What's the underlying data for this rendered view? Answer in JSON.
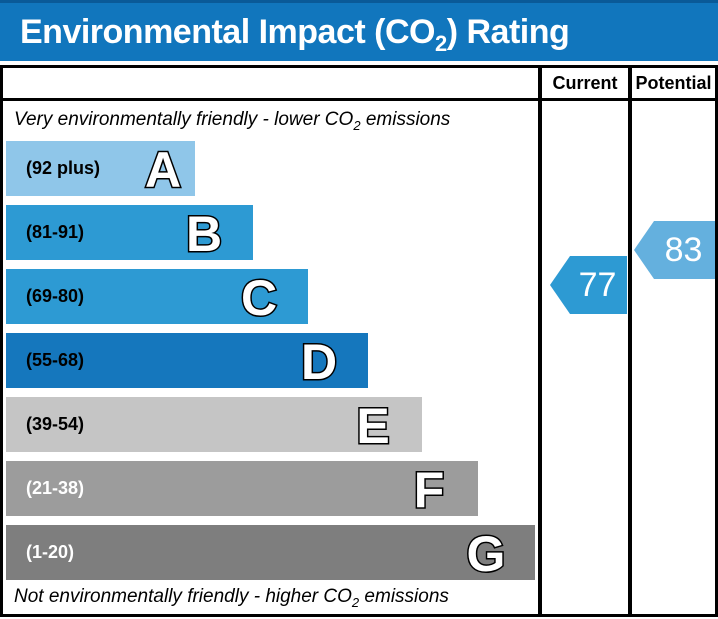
{
  "title": {
    "prefix": "Environmental Impact (CO",
    "sub": "2",
    "suffix": ") Rating"
  },
  "header": {
    "current": "Current",
    "potential": "Potential"
  },
  "notes": {
    "top": {
      "prefix": "Very environmentally friendly - lower CO",
      "sub": "2",
      "suffix": " emissions"
    },
    "bottom": {
      "prefix": "Not environmentally friendly - higher CO",
      "sub": "2",
      "suffix": " emissions"
    }
  },
  "bands": [
    {
      "letter": "A",
      "range": "(92 plus)",
      "color": "#8fc6e9",
      "text_color": "#000000"
    },
    {
      "letter": "B",
      "range": "(81-91)",
      "color": "#2d9ad3",
      "text_color": "#000000"
    },
    {
      "letter": "C",
      "range": "(69-80)",
      "color": "#2d9ad3",
      "text_color": "#000000"
    },
    {
      "letter": "D",
      "range": "(55-68)",
      "color": "#1577bd",
      "text_color": "#000000"
    },
    {
      "letter": "E",
      "range": "(39-54)",
      "color": "#c5c5c5",
      "text_color": "#000000"
    },
    {
      "letter": "F",
      "range": "(21-38)",
      "color": "#9c9c9c",
      "text_color": "#ffffff"
    },
    {
      "letter": "G",
      "range": "(1-20)",
      "color": "#7e7e7e",
      "text_color": "#ffffff"
    }
  ],
  "current": {
    "value": "77",
    "color": "#2d9ad3",
    "band": "C"
  },
  "potential": {
    "value": "83",
    "color": "#64b0de",
    "band": "B"
  },
  "accent_colors": {
    "title_bar": "#1176bd",
    "title_bar_top_edge": "#0a5a98",
    "border": "#000000"
  },
  "chart_data": {
    "type": "bar",
    "title": "Environmental Impact (CO2) Rating",
    "categories": [
      "A",
      "B",
      "C",
      "D",
      "E",
      "F",
      "G"
    ],
    "band_ranges": [
      "92 plus",
      "81-91",
      "69-80",
      "55-68",
      "39-54",
      "21-38",
      "1-20"
    ],
    "band_colors": [
      "#8fc6e9",
      "#2d9ad3",
      "#2d9ad3",
      "#1577bd",
      "#c5c5c5",
      "#9c9c9c",
      "#7e7e7e"
    ],
    "bar_relative_widths": [
      189,
      247,
      302,
      362,
      416,
      472,
      529
    ],
    "columns": [
      "Current",
      "Potential"
    ],
    "current_value": 77,
    "current_band": "C",
    "potential_value": 83,
    "potential_band": "B",
    "top_annotation": "Very environmentally friendly - lower CO2 emissions",
    "bottom_annotation": "Not environmentally friendly - higher CO2 emissions",
    "scale_min": 1,
    "scale_max": 100
  }
}
